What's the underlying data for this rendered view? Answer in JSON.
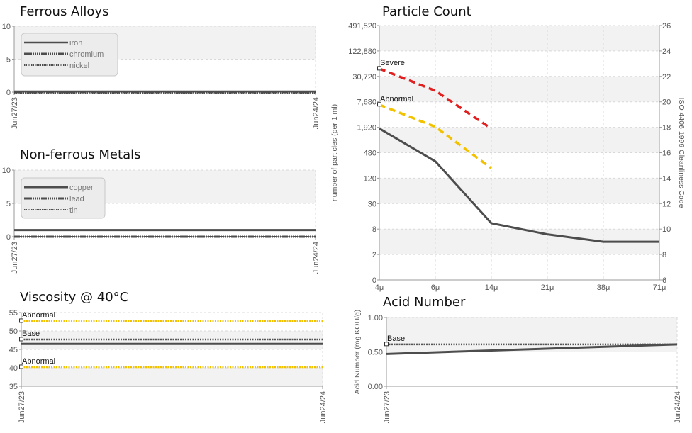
{
  "panels": {
    "ferrous": {
      "title": "Ferrous Alloys",
      "chart_data": {
        "type": "line",
        "title": "Ferrous Alloys",
        "x_labels": [
          "Jun27/23",
          "Jun24/24"
        ],
        "ylim": [
          0,
          10
        ],
        "y_ticks": [
          "0",
          "5",
          "10"
        ],
        "series": [
          {
            "name": "iron",
            "values": [
              0,
              0
            ]
          },
          {
            "name": "chromium",
            "values": [
              0,
              0
            ]
          },
          {
            "name": "nickel",
            "values": [
              0,
              0
            ]
          }
        ],
        "legend": "top-left",
        "grid": true
      }
    },
    "nonferrous": {
      "title": "Non-ferrous Metals",
      "chart_data": {
        "type": "line",
        "title": "Non-ferrous Metals",
        "x_labels": [
          "Jun27/23",
          "Jun24/24"
        ],
        "ylim": [
          0,
          10
        ],
        "y_ticks": [
          "0",
          "5",
          "10"
        ],
        "series": [
          {
            "name": "copper",
            "values": [
              1,
              1
            ]
          },
          {
            "name": "lead",
            "values": [
              0,
              0
            ]
          },
          {
            "name": "tin",
            "values": [
              0,
              0
            ]
          }
        ],
        "legend": "top-left",
        "grid": true
      }
    },
    "viscosity": {
      "title": "Viscosity @ 40°C",
      "chart_data": {
        "type": "line",
        "title": "Viscosity @ 40°C",
        "x_labels": [
          "Jun27/23",
          "Jun24/24"
        ],
        "ylim": [
          35,
          55
        ],
        "y_ticks": [
          "35",
          "40",
          "45",
          "50",
          "55"
        ],
        "series": [
          {
            "values": [
              46.5,
              46.5
            ]
          }
        ],
        "reference_lines": [
          {
            "label": "Abnormal",
            "value": 52.7,
            "color": "#f2c200"
          },
          {
            "label": "Base",
            "value": 47.7,
            "color": "#555555"
          },
          {
            "label": "Abnormal",
            "value": 40.2,
            "color": "#f2c200"
          }
        ],
        "grid": true
      }
    },
    "particle": {
      "title": "Particle Count",
      "chart_data": {
        "type": "line",
        "title": "Particle Count",
        "categories": [
          "4μ",
          "6μ",
          "14μ",
          "21μ",
          "38μ",
          "71μ"
        ],
        "ylabel": "number of particles (per 1 ml)",
        "y2label": "ISO 4406:1999 Cleanliness Code",
        "y_ticks": [
          "0",
          "2",
          "8",
          "30",
          "120",
          "480",
          "1,920",
          "7,680",
          "30,720",
          "122,880",
          "491,520"
        ],
        "y2_ticks": [
          "6",
          "8",
          "10",
          "12",
          "14",
          "16",
          "18",
          "20",
          "22",
          "24",
          "26"
        ],
        "series": [
          {
            "values": [
              1920,
              320,
              11,
              6,
              4,
              4
            ]
          }
        ],
        "reference_lines": [
          {
            "label": "Severe",
            "values": [
              50000,
              15000,
              1900
            ],
            "color": "#e02020"
          },
          {
            "label": "Abnormal",
            "values": [
              7000,
              2100,
              220
            ],
            "color": "#f2c200"
          }
        ],
        "grid": true
      }
    },
    "acid": {
      "title": "Acid Number",
      "chart_data": {
        "type": "line",
        "title": "Acid Number",
        "x_labels": [
          "Jun27/23",
          "Jun24/24"
        ],
        "ylabel": "Acid Number (mg KOH/g)",
        "ylim": [
          0,
          1
        ],
        "y_ticks": [
          "0.00",
          "0.50",
          "1.00"
        ],
        "series": [
          {
            "values": [
              0.47,
              0.61
            ]
          }
        ],
        "reference_lines": [
          {
            "label": "Base",
            "value": 0.61,
            "color": "#555555"
          }
        ],
        "grid": true
      }
    }
  },
  "colors": {
    "series_dark": "#4d4d4d",
    "severe": "#e02020",
    "abnormal": "#f2c200",
    "grid": "#d8d8d8",
    "band": "#f2f2f2"
  }
}
